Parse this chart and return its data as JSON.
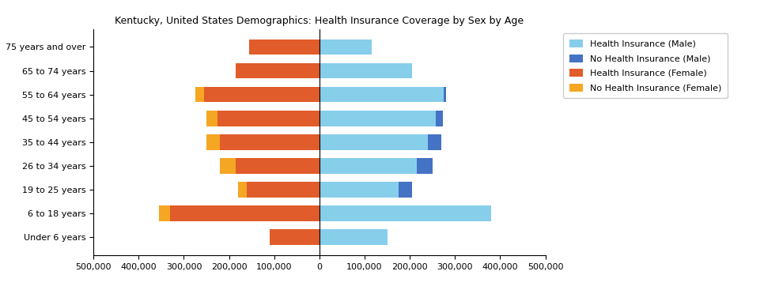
{
  "title": "Kentucky, United States Demographics: Health Insurance Coverage by Sex by Age",
  "age_groups": [
    "Under 6 years",
    "6 to 18 years",
    "19 to 25 years",
    "26 to 34 years",
    "35 to 44 years",
    "45 to 54 years",
    "55 to 64 years",
    "65 to 74 years",
    "75 years and over"
  ],
  "health_ins_male": [
    150000,
    380000,
    175000,
    215000,
    240000,
    258000,
    275000,
    205000,
    115000
  ],
  "no_health_ins_male": [
    0,
    0,
    30000,
    35000,
    30000,
    15000,
    5000,
    0,
    0
  ],
  "health_ins_female": [
    110000,
    330000,
    160000,
    185000,
    220000,
    225000,
    255000,
    185000,
    155000
  ],
  "no_health_ins_female": [
    0,
    25000,
    20000,
    35000,
    30000,
    25000,
    20000,
    0,
    0
  ],
  "colors": {
    "health_ins_male": "#87CEEB",
    "no_health_ins_male": "#4472C4",
    "health_ins_female": "#E05C2A",
    "no_health_ins_female": "#F5A623"
  },
  "xlim": [
    -500000,
    500000
  ],
  "xticks": [
    -500000,
    -400000,
    -300000,
    -200000,
    -100000,
    0,
    100000,
    200000,
    300000,
    400000,
    500000
  ],
  "bar_height": 0.65,
  "title_fontsize": 9,
  "tick_fontsize": 8,
  "legend_fontsize": 8
}
